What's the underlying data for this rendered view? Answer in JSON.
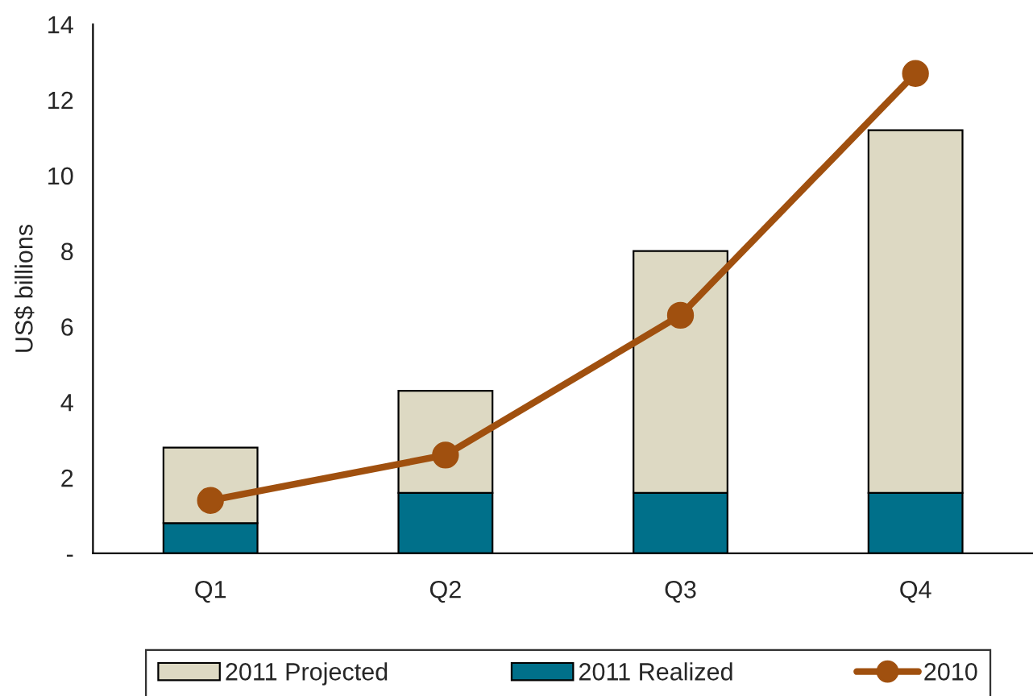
{
  "chart_data": {
    "type": "bar",
    "stacked": true,
    "ylabel": "US$ billions",
    "categories": [
      "Q1",
      "Q2",
      "Q3",
      "Q4"
    ],
    "series": [
      {
        "name": "2011 Realized",
        "color": "#00708a",
        "values": [
          0.8,
          1.6,
          1.6,
          1.6
        ]
      },
      {
        "name": "2011 Projected",
        "color": "#ddd9c3",
        "values": [
          2.0,
          2.7,
          6.4,
          9.6
        ]
      },
      {
        "name": "2010",
        "type": "line",
        "color": "#a0500f",
        "values": [
          1.4,
          2.6,
          6.3,
          12.7
        ]
      }
    ],
    "ylim": [
      0,
      14
    ],
    "yticks": [
      {
        "value": 0,
        "label": "-"
      },
      2,
      4,
      6,
      8,
      10,
      12,
      14
    ],
    "grid": false,
    "legend": "bottom",
    "marker": "circle",
    "line_style": "solid"
  }
}
